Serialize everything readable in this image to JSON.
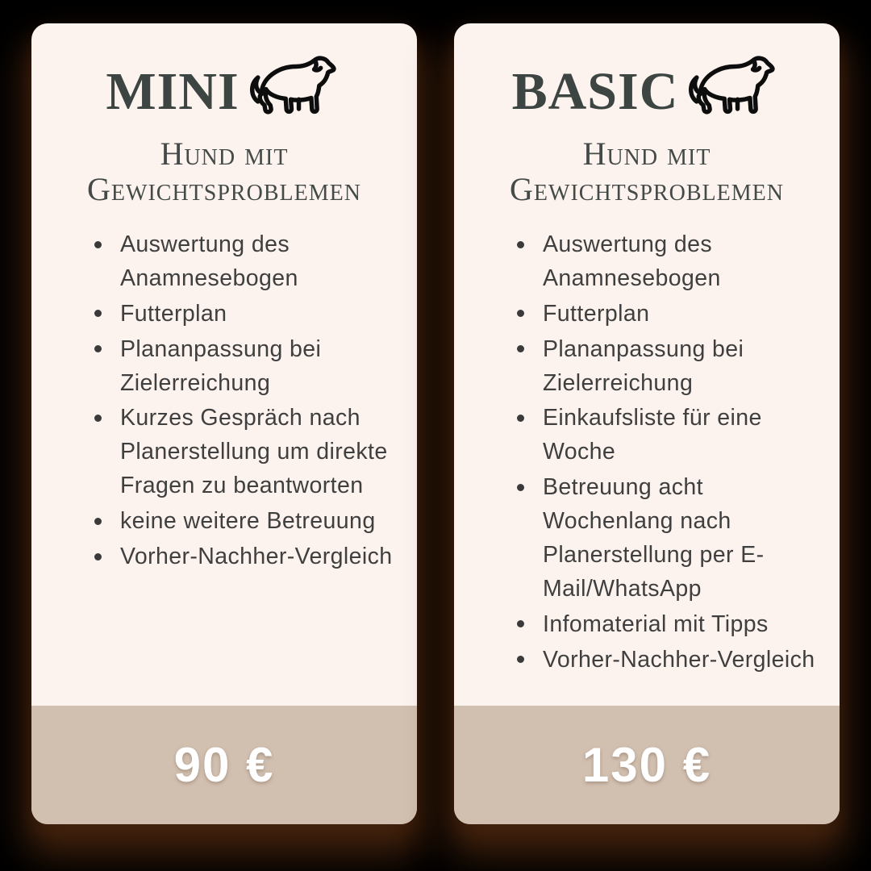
{
  "page": {
    "background_color": "#000000",
    "card_background_color": "#fdf3ee",
    "price_band_color": "#d1bfb0",
    "title_color": "#3d4543",
    "body_text_color": "#3f3f3f",
    "price_text_color": "#ffffff"
  },
  "cards": [
    {
      "title": "MINI",
      "icon": "dog-icon",
      "subtitle": "Hund mit Gewichtsproblemen",
      "items": [
        "Auswertung des Anamnesebogen",
        "Futterplan",
        "Plananpassung bei Zielerreichung",
        "Kurzes Gespräch nach Planerstellung um direkte Fragen zu beantworten",
        "keine weitere Betreuung",
        "Vorher-Nachher-Vergleich"
      ],
      "price": "90 €"
    },
    {
      "title": "BASIC",
      "icon": "dog-icon",
      "subtitle": "Hund mit Gewichtsproblemen",
      "items": [
        "Auswertung des Anamnesebogen",
        "Futterplan",
        "Plananpassung bei Zielerreichung",
        "Einkaufsliste für eine Woche",
        "Betreuung acht Wochenlang nach Planerstellung per E-Mail/WhatsApp",
        "Infomaterial mit Tipps",
        "Vorher-Nachher-Vergleich"
      ],
      "price": "130 €"
    }
  ]
}
